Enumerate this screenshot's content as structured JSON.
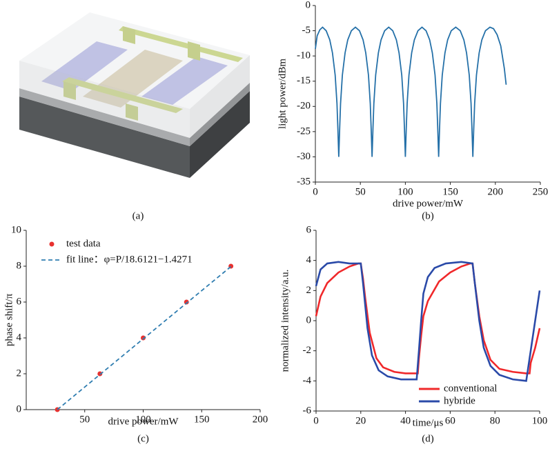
{
  "figure_a": {
    "caption": "(a)"
  },
  "chart_data": [
    {
      "type": "line",
      "caption": "(b)",
      "x_label": "drive power/mW",
      "y_label": "light power/dBm",
      "xlim": [
        0,
        250
      ],
      "xticks": [
        0,
        50,
        100,
        150,
        200,
        250
      ],
      "ylim": [
        -35,
        0
      ],
      "yticks": [
        -35,
        -30,
        -25,
        -20,
        -15,
        -10,
        -5,
        0
      ],
      "series": [
        {
          "color": "#2470a8",
          "x": [
            0,
            2,
            5,
            8,
            12,
            16,
            19,
            22,
            24,
            25,
            26,
            27,
            28,
            30,
            33,
            36,
            40,
            44.5,
            49,
            53,
            56,
            59,
            61,
            62,
            63,
            64,
            65,
            67,
            70,
            73,
            77,
            81.5,
            86,
            90,
            93,
            96,
            98,
            99,
            100,
            101,
            102,
            104,
            107,
            110,
            114,
            118.5,
            123,
            127,
            130,
            133,
            135,
            136,
            137,
            138,
            139,
            141,
            144,
            147,
            151,
            156,
            161,
            165,
            168,
            171,
            173,
            174,
            175,
            176,
            177,
            179,
            182,
            185,
            189,
            194,
            198,
            202,
            206,
            210,
            212
          ],
          "values": [
            -8.6,
            -6.0,
            -4.8,
            -4.3,
            -5.0,
            -6.8,
            -9.4,
            -13.8,
            -19.4,
            -24.4,
            -30,
            -24.4,
            -19.4,
            -13.8,
            -9.4,
            -6.8,
            -5.0,
            -4.3,
            -5.0,
            -6.8,
            -9.4,
            -13.8,
            -19.4,
            -24.4,
            -30,
            -24.4,
            -19.4,
            -13.8,
            -9.4,
            -6.8,
            -5.0,
            -4.3,
            -5.0,
            -6.8,
            -9.4,
            -13.8,
            -19.4,
            -24.4,
            -30,
            -24.4,
            -19.4,
            -13.8,
            -9.4,
            -6.8,
            -5.0,
            -4.3,
            -5.0,
            -6.8,
            -9.4,
            -13.8,
            -19.4,
            -24.4,
            -30,
            -24.4,
            -19.4,
            -13.8,
            -9.4,
            -6.8,
            -5.0,
            -4.3,
            -5.0,
            -6.8,
            -9.4,
            -13.8,
            -19.4,
            -24.4,
            -30,
            -24.4,
            -19.4,
            -13.8,
            -9.4,
            -6.8,
            -5.0,
            -4.3,
            -4.6,
            -5.8,
            -8.0,
            -12.5,
            -15.7
          ]
        }
      ]
    },
    {
      "type": "scatter",
      "caption": "(c)",
      "x_label": "drive power/mW",
      "y_label": "phase shift/π",
      "xlim": [
        0,
        200
      ],
      "xticks": [
        50,
        100,
        150,
        200
      ],
      "ylim": [
        0,
        10
      ],
      "yticks": [
        0,
        2,
        4,
        6,
        8,
        10
      ],
      "legend": "upper left",
      "series": [
        {
          "name": "test data",
          "mark": "dot",
          "color": "#e8312f",
          "x": [
            26.6,
            63,
            100,
            137,
            175
          ],
          "values": [
            0,
            2,
            4,
            6,
            8
          ]
        },
        {
          "name": "fit line：φ=P/18.6121−1.4271",
          "mark": "dashed-line",
          "color": "#2f7db0",
          "x": [
            26.6,
            175
          ],
          "values": [
            0,
            7.98
          ]
        }
      ]
    },
    {
      "type": "line",
      "caption": "(d)",
      "x_label": "time/μs",
      "y_label": "normalized intensity/a.u.",
      "xlim": [
        0,
        100
      ],
      "xticks": [
        0,
        20,
        40,
        60,
        80,
        100
      ],
      "ylim": [
        -6,
        6
      ],
      "yticks": [
        -6,
        -4,
        -2,
        0,
        2,
        4,
        6
      ],
      "legend": "lower right",
      "series": [
        {
          "name": "conventional",
          "color": "#f0282a",
          "x": [
            0,
            2,
            5,
            10,
            15,
            19,
            20,
            21,
            22,
            24,
            27,
            30,
            35,
            40,
            45,
            45.5,
            46,
            47,
            48,
            50,
            55,
            60,
            65,
            69,
            70,
            71,
            73,
            75,
            78,
            82,
            88,
            94,
            95.5,
            96,
            98,
            100
          ],
          "values": [
            0.3,
            1.6,
            2.5,
            3.2,
            3.6,
            3.8,
            3.8,
            2.8,
            1.5,
            -0.8,
            -2.5,
            -3.1,
            -3.4,
            -3.5,
            -3.5,
            -3.5,
            -2.5,
            -1.0,
            0.3,
            1.3,
            2.6,
            3.2,
            3.6,
            3.8,
            3.8,
            2.5,
            0.3,
            -1.3,
            -2.6,
            -3.2,
            -3.4,
            -3.5,
            -3.5,
            -2.8,
            -1.8,
            -0.5
          ]
        },
        {
          "name": "hybride",
          "color": "#2a4aa8",
          "x": [
            0,
            2,
            5,
            10,
            15,
            20,
            21,
            23,
            25,
            28,
            32,
            38,
            45,
            46,
            47,
            48,
            50,
            53,
            58,
            65,
            70,
            71,
            73,
            75,
            78,
            82,
            88,
            94,
            95,
            97,
            100
          ],
          "values": [
            2.3,
            3.4,
            3.8,
            3.9,
            3.8,
            3.8,
            2.5,
            -0.5,
            -2.3,
            -3.3,
            -3.7,
            -3.9,
            -3.9,
            -2.0,
            0,
            1.8,
            2.9,
            3.5,
            3.8,
            3.9,
            3.8,
            2.5,
            0,
            -1.8,
            -3.0,
            -3.6,
            -3.9,
            -4.0,
            -3.0,
            -1.0,
            2.0
          ]
        }
      ]
    }
  ]
}
